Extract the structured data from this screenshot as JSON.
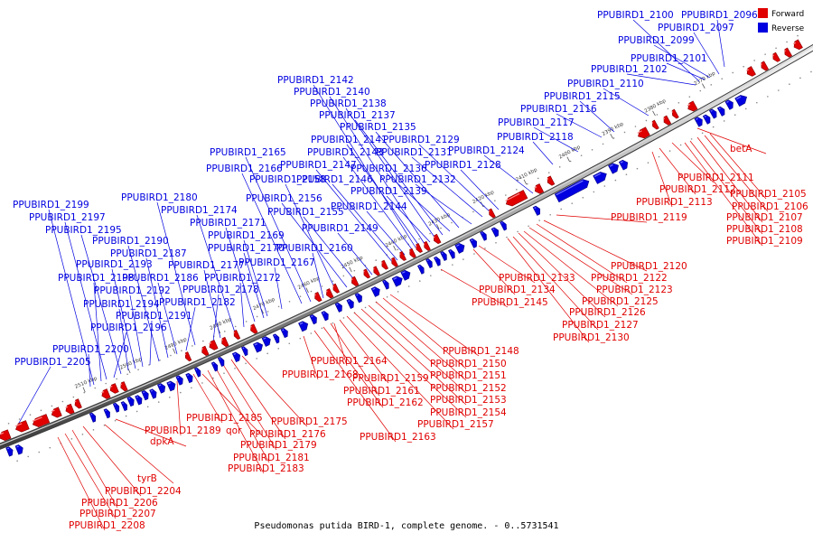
{
  "legend": {
    "forward_label": "Forward",
    "reverse_label": "Reverse",
    "forward_color": "#e00000",
    "reverse_color": "#0000e0"
  },
  "caption": "Pseudomonas putida BIRD-1, complete genome. - 0..5731541",
  "scale_ticks": [
    "2370 kbp",
    "2380 kbp",
    "2390 kbp",
    "2400 kbp",
    "2410 kbp",
    "2420 kbp",
    "2430 kbp",
    "2440 kbp",
    "2450 kbp",
    "2460 kbp",
    "2470 kbp",
    "2480 kbp",
    "2490 kbp",
    "2500 kbp",
    "2510 kbp"
  ],
  "reverse_genes": [
    "PPUBIRD1_2096",
    "PPUBIRD1_2097",
    "PPUBIRD1_2099",
    "PPUBIRD1_2100",
    "PPUBIRD1_2101",
    "PPUBIRD1_2102",
    "PPUBIRD1_2110",
    "PPUBIRD1_2115",
    "PPUBIRD1_2116",
    "PPUBIRD1_2117",
    "PPUBIRD1_2118",
    "PPUBIRD1_2124",
    "PPUBIRD1_2128",
    "PPUBIRD1_2129",
    "PPUBIRD1_2131",
    "PPUBIRD1_2132",
    "PPUBIRD1_2135",
    "PPUBIRD1_2136",
    "PPUBIRD1_2137",
    "PPUBIRD1_2138",
    "PPUBIRD1_2139",
    "PPUBIRD1_2140",
    "PPUBIRD1_2141",
    "PPUBIRD1_2142",
    "PPUBIRD1_2143",
    "PPUBIRD1_2144",
    "PPUBIRD1_2146",
    "PPUBIRD1_2147",
    "PPUBIRD1_2149",
    "PPUBIRD1_2155",
    "PPUBIRD1_2156",
    "PPUBIRD1_2158",
    "PPUBIRD1_2160",
    "PPUBIRD1_2165",
    "PPUBIRD1_2166",
    "PPUBIRD1_2167",
    "PPUBIRD1_2169",
    "PPUBIRD1_2170",
    "PPUBIRD1_2171",
    "PPUBIRD1_2172",
    "PPUBIRD1_2174",
    "PPUBIRD1_2177",
    "PPUBIRD1_2178",
    "PPUBIRD1_2180",
    "PPUBIRD1_2182",
    "PPUBIRD1_2186",
    "PPUBIRD1_2187",
    "PPUBIRD1_2190",
    "PPUBIRD1_2191",
    "PPUBIRD1_2192",
    "PPUBIRD1_2193",
    "PPUBIRD1_2194",
    "PPUBIRD1_2195",
    "PPUBIRD1_2196",
    "PPUBIRD1_2197",
    "PPUBIRD1_2198",
    "PPUBIRD1_2199",
    "PPUBIRD1_2200",
    "PPUBIRD1_2205"
  ],
  "forward_genes": [
    "betA",
    "PPUBIRD1_2105",
    "PPUBIRD1_2106",
    "PPUBIRD1_2107",
    "PPUBIRD1_2108",
    "PPUBIRD1_2109",
    "PPUBIRD1_2111",
    "PPUBIRD1_2112",
    "PPUBIRD1_2113",
    "PPUBIRD1_2119",
    "PPUBIRD1_2120",
    "PPUBIRD1_2122",
    "PPUBIRD1_2123",
    "PPUBIRD1_2125",
    "PPUBIRD1_2126",
    "PPUBIRD1_2127",
    "PPUBIRD1_2130",
    "PPUBIRD1_2133",
    "PPUBIRD1_2134",
    "PPUBIRD1_2145",
    "PPUBIRD1_2148",
    "PPUBIRD1_2150",
    "PPUBIRD1_2151",
    "PPUBIRD1_2152",
    "PPUBIRD1_2153",
    "PPUBIRD1_2154",
    "PPUBIRD1_2157",
    "PPUBIRD1_2159",
    "PPUBIRD1_2161",
    "PPUBIRD1_2162",
    "PPUBIRD1_2163",
    "PPUBIRD1_2164",
    "PPUBIRD1_2168",
    "PPUBIRD1_2175",
    "PPUBIRD1_2176",
    "PPUBIRD1_2179",
    "PPUBIRD1_2181",
    "PPUBIRD1_2183",
    "PPUBIRD1_2185",
    "PPUBIRD1_2189",
    "qor",
    "dpkA",
    "tyrB",
    "PPUBIRD1_2204",
    "PPUBIRD1_2206",
    "PPUBIRD1_2207",
    "PPUBIRD1_2208"
  ]
}
